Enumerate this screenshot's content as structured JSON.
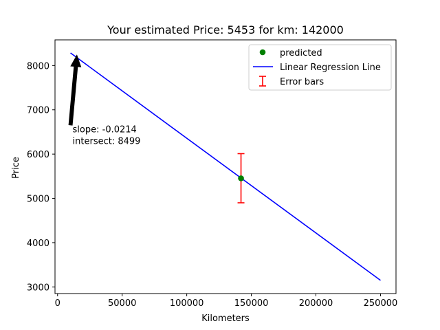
{
  "chart_data": {
    "type": "line",
    "title": "Your estimated Price: 5453 for km: 142000",
    "xlabel": "Kilometers",
    "ylabel": "Price",
    "xlim": [
      -2000,
      262000
    ],
    "ylim": [
      2850,
      8580
    ],
    "xticks": [
      0,
      50000,
      100000,
      150000,
      200000,
      250000
    ],
    "yticks": [
      3000,
      4000,
      5000,
      6000,
      7000,
      8000
    ],
    "grid": false,
    "legend_position": "upper right",
    "regression_line": {
      "name": "Linear Regression Line",
      "color": "#0000ff",
      "points": [
        [
          10000,
          8285
        ],
        [
          250000,
          3149
        ]
      ]
    },
    "predicted_point": {
      "name": "predicted",
      "color": "#008000",
      "x": 142000,
      "y": 5453
    },
    "error_bar": {
      "name": "Error bars",
      "color": "#ff0000",
      "x": 142000,
      "low": 4900,
      "high": 6010
    },
    "annotation": {
      "lines": [
        "slope: -0.0214",
        "intersect: 8499"
      ],
      "text_at": [
        10000,
        6400
      ],
      "arrow_tail": [
        10000,
        6650
      ],
      "arrow_head": [
        15000,
        8250
      ]
    }
  }
}
